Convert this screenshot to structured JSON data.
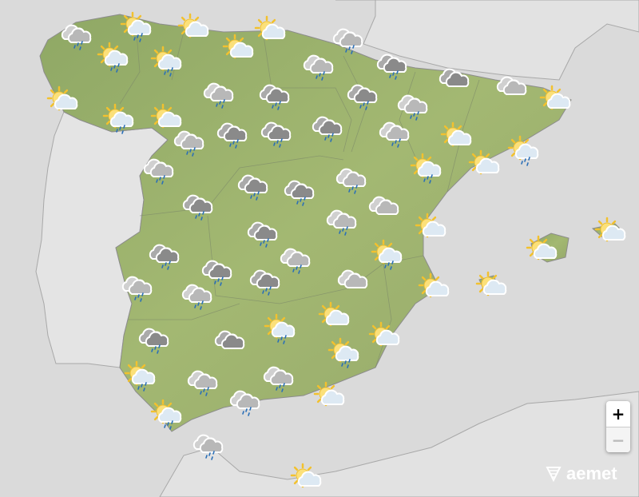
{
  "map": {
    "colors": {
      "sea": "#dadada",
      "land_spain": "#9bb06a",
      "land_other": "#e2e2e2",
      "border": "#a8a8a8"
    },
    "weather_icons": [
      "cloud-rain",
      "sun-cloud-rain",
      "sun-cloud",
      "sun-cloud",
      "cloud-rain",
      "sun-cloud-rain",
      "sun-cloud-rain",
      "sun-cloud",
      "cloud-rain",
      "dark-cloud-rain",
      "dark-cloud",
      "cloud",
      "sun-cloud",
      "sun-cloud-rain",
      "sun-cloud",
      "cloud-rain",
      "dark-cloud-rain",
      "dark-cloud-rain",
      "cloud-rain",
      "sun-cloud",
      "cloud-rain",
      "dark-cloud-rain",
      "dark-cloud-rain",
      "dark-cloud-rain",
      "cloud-rain",
      "sun-cloud",
      "sun-cloud-rain",
      "cloud-rain",
      "sun-cloud-rain",
      "sun-cloud",
      "dark-cloud-rain",
      "dark-cloud-rain",
      "cloud-rain",
      "dark-cloud-rain",
      "cloud",
      "cloud-rain",
      "sun-cloud",
      "sun-cloud",
      "dark-cloud-rain",
      "dark-cloud-rain",
      "cloud-rain",
      "sun-cloud-rain",
      "sun-cloud",
      "cloud-rain",
      "dark-cloud-rain",
      "dark-cloud-rain",
      "cloud",
      "sun-cloud",
      "sun-cloud",
      "cloud-rain",
      "sun-cloud",
      "sun-cloud-rain",
      "dark-cloud-rain",
      "dark-cloud",
      "sun-cloud",
      "sun-cloud-rain",
      "sun-cloud-rain",
      "cloud-rain",
      "cloud-rain",
      "cloud-rain",
      "sun-cloud",
      "sun-cloud-rain",
      "cloud-rain",
      "sun-cloud"
    ]
  },
  "controls": {
    "zoom_in": "+",
    "zoom_out": "−"
  },
  "logo": {
    "text": "aemet"
  }
}
